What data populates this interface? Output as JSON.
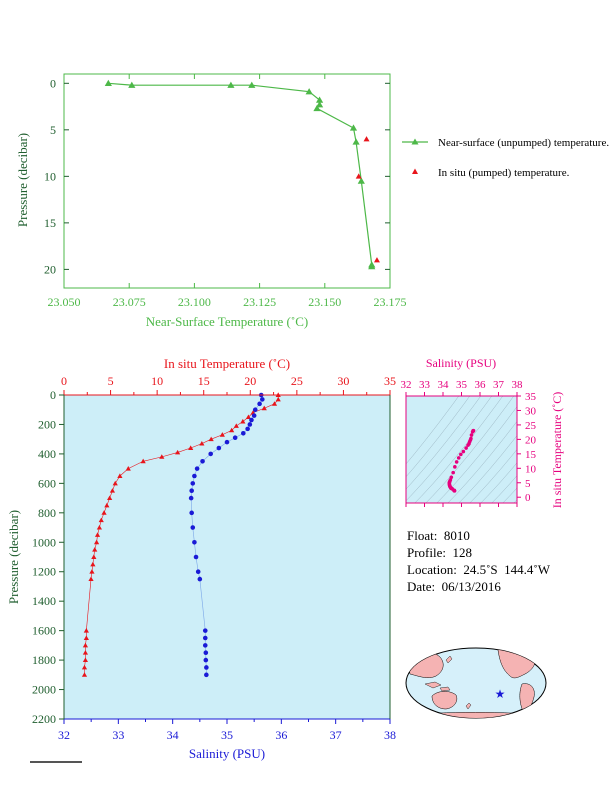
{
  "chart_data": [
    {
      "type": "line",
      "xlabel": "Near-Surface Temperature (˚C)",
      "ylabel": "Pressure (decibar)",
      "xlim": [
        23.05,
        23.175
      ],
      "ylim": [
        22,
        -1
      ],
      "xticks": [
        "23.050",
        "23.075",
        "23.100",
        "23.125",
        "23.150",
        "23.175"
      ],
      "yticks": [
        "0",
        "5",
        "10",
        "15",
        "20"
      ],
      "series": [
        {
          "name": "Near-surface (unpumped) temperature.",
          "color": "#4db848",
          "x": [
            23.067,
            23.076,
            23.114,
            23.122,
            23.144,
            23.148,
            23.148,
            23.147,
            23.161,
            23.162,
            23.164,
            23.168,
            23.168
          ],
          "y": [
            0.0,
            0.2,
            0.2,
            0.2,
            0.9,
            1.8,
            2.3,
            2.7,
            4.8,
            6.3,
            10.5,
            19.5,
            19.7
          ]
        },
        {
          "name": "In situ (pumped) temperature.",
          "color": "#e8141b",
          "x": [
            23.163,
            23.166,
            23.17
          ],
          "y": [
            10.0,
            6.0,
            19.0
          ]
        }
      ],
      "legend": "right"
    },
    {
      "type": "line",
      "top_xlabel": "In situ Temperature (˚C)",
      "bottom_xlabel": "Salinity (PSU)",
      "ylabel": "Pressure (decibar)",
      "top_xticks": [
        "0",
        "5",
        "10",
        "15",
        "20",
        "25",
        "30",
        "35"
      ],
      "top_xlim": [
        0,
        35
      ],
      "bottom_xticks": [
        "32",
        "33",
        "34",
        "35",
        "36",
        "37",
        "38"
      ],
      "bottom_xlim": [
        32,
        38
      ],
      "yticks": [
        "0",
        "200",
        "400",
        "600",
        "800",
        "1000",
        "1200",
        "1400",
        "1600",
        "1800",
        "2000",
        "2200"
      ],
      "ylim": [
        2200,
        0
      ],
      "temperature": {
        "color": "#e8141b",
        "p": [
          0,
          30,
          60,
          90,
          120,
          150,
          180,
          210,
          240,
          270,
          300,
          330,
          360,
          390,
          420,
          450,
          500,
          550,
          600,
          650,
          700,
          750,
          800,
          850,
          900,
          950,
          1000,
          1050,
          1100,
          1150,
          1200,
          1250,
          1600,
          1650,
          1700,
          1750,
          1800,
          1850,
          1900
        ],
        "t": [
          23.0,
          23.0,
          22.6,
          21.5,
          20.3,
          19.8,
          19.2,
          18.5,
          18.0,
          17.0,
          15.8,
          14.8,
          13.6,
          12.2,
          10.5,
          8.5,
          6.9,
          6.0,
          5.5,
          5.2,
          4.9,
          4.6,
          4.3,
          4.0,
          3.8,
          3.6,
          3.5,
          3.3,
          3.2,
          3.1,
          3.0,
          2.9,
          2.4,
          2.4,
          2.3,
          2.3,
          2.3,
          2.2,
          2.2
        ]
      },
      "salinity": {
        "color": "#1a1ad6",
        "p": [
          0,
          30,
          60,
          100,
          140,
          170,
          200,
          230,
          260,
          290,
          320,
          360,
          400,
          450,
          500,
          550,
          600,
          650,
          700,
          800,
          900,
          1000,
          1100,
          1200,
          1250,
          1600,
          1650,
          1700,
          1750,
          1800,
          1850,
          1900
        ],
        "s": [
          35.63,
          35.65,
          35.6,
          35.52,
          35.5,
          35.45,
          35.42,
          35.38,
          35.3,
          35.15,
          35.0,
          34.85,
          34.7,
          34.55,
          34.45,
          34.4,
          34.37,
          34.35,
          34.34,
          34.35,
          34.37,
          34.4,
          34.43,
          34.47,
          34.5,
          34.6,
          34.6,
          34.6,
          34.61,
          34.61,
          34.62,
          34.62
        ]
      }
    },
    {
      "type": "scatter",
      "xlabel": "Salinity (PSU)",
      "ylabel": "In situ Temperature (˚C)",
      "xticks": [
        "32",
        "33",
        "34",
        "35",
        "36",
        "37",
        "38"
      ],
      "xlim": [
        32,
        38
      ],
      "yticks": [
        "0",
        "5",
        "10",
        "15",
        "20",
        "25",
        "30",
        "35"
      ],
      "ylim": [
        -2,
        35
      ],
      "color": "#e6007e"
    }
  ],
  "float_info": {
    "float": "Float:  8010",
    "profile": "Profile:  128",
    "location": "Location:  24.5˚S  144.4˚W",
    "date": "Date:  06/13/2016"
  },
  "colors": {
    "plot_bg": "#cdeef8",
    "top_axis": "#4db848",
    "temperature_axis": "#e8141b",
    "salinity_axis": "#1a1ad6",
    "ts_axis": "#e6007e",
    "map_ocean": "#d6f0fa",
    "map_land": "#f5b3b3"
  }
}
